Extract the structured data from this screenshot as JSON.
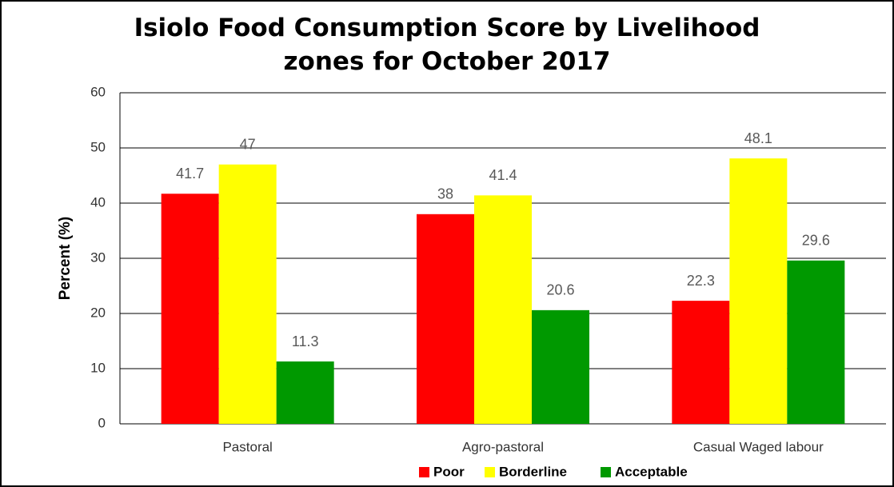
{
  "chart_data": {
    "type": "bar",
    "title": "Isiolo Food Consumption Score by Livelihood zones for October 2017",
    "y_label": "Percent (%)",
    "categories": [
      "Pastoral",
      "Agro-pastoral",
      "Casual Waged labour"
    ],
    "series": [
      {
        "name": "Poor",
        "color": "#ff0000",
        "values": [
          41.7,
          38,
          22.3
        ]
      },
      {
        "name": "Borderline",
        "color": "#ffff00",
        "values": [
          47,
          41.4,
          48.1
        ]
      },
      {
        "name": "Acceptable",
        "color": "#009900",
        "values": [
          11.3,
          20.6,
          29.6
        ]
      }
    ],
    "ylim": [
      0,
      60
    ],
    "yticks": [
      0,
      10,
      20,
      30,
      40,
      50,
      60
    ],
    "grid": true,
    "legend": "bottom"
  }
}
